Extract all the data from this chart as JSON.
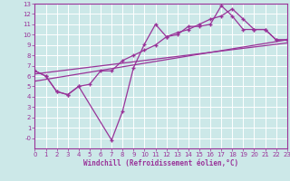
{
  "background_color": "#cce8e8",
  "grid_color": "#ffffff",
  "line_color": "#993399",
  "xlabel": "Windchill (Refroidissement éolien,°C)",
  "xlim": [
    0,
    23
  ],
  "ylim": [
    -1,
    13
  ],
  "xticks": [
    0,
    1,
    2,
    3,
    4,
    5,
    6,
    7,
    8,
    9,
    10,
    11,
    12,
    13,
    14,
    15,
    16,
    17,
    18,
    19,
    20,
    21,
    22,
    23
  ],
  "yticks": [
    0,
    1,
    2,
    3,
    4,
    5,
    6,
    7,
    8,
    9,
    10,
    11,
    12,
    13
  ],
  "ytick_labels": [
    "-0",
    "1",
    "2",
    "3",
    "4",
    "5",
    "6",
    "7",
    "8",
    "9",
    "10",
    "11",
    "12",
    "13"
  ],
  "line1_x": [
    0,
    23
  ],
  "line1_y": [
    5.5,
    9.5
  ],
  "line2_x": [
    0,
    23
  ],
  "line2_y": [
    6.2,
    9.2
  ],
  "series1_x": [
    0,
    1,
    2,
    3,
    4,
    5,
    6,
    7,
    8,
    9,
    10,
    11,
    12,
    13,
    14,
    15,
    16,
    17,
    18,
    19,
    20,
    21,
    22,
    23
  ],
  "series1_y": [
    6.5,
    6.0,
    4.5,
    4.2,
    5.0,
    5.2,
    6.5,
    6.5,
    7.5,
    8.0,
    8.5,
    9.0,
    9.8,
    10.2,
    10.5,
    11.0,
    11.5,
    11.8,
    12.5,
    11.5,
    10.5,
    10.5,
    9.5,
    9.5
  ],
  "series2_x": [
    0,
    1,
    2,
    3,
    4,
    7,
    8,
    9,
    10,
    11,
    12,
    13,
    14,
    15,
    16,
    17,
    18,
    19,
    20,
    21,
    22,
    23
  ],
  "series2_y": [
    6.5,
    6.0,
    4.5,
    4.2,
    5.0,
    -0.2,
    2.6,
    6.8,
    9.1,
    11.0,
    9.8,
    10.0,
    10.8,
    10.8,
    11.0,
    12.8,
    11.8,
    10.5,
    10.5,
    10.5,
    9.5,
    9.5
  ]
}
